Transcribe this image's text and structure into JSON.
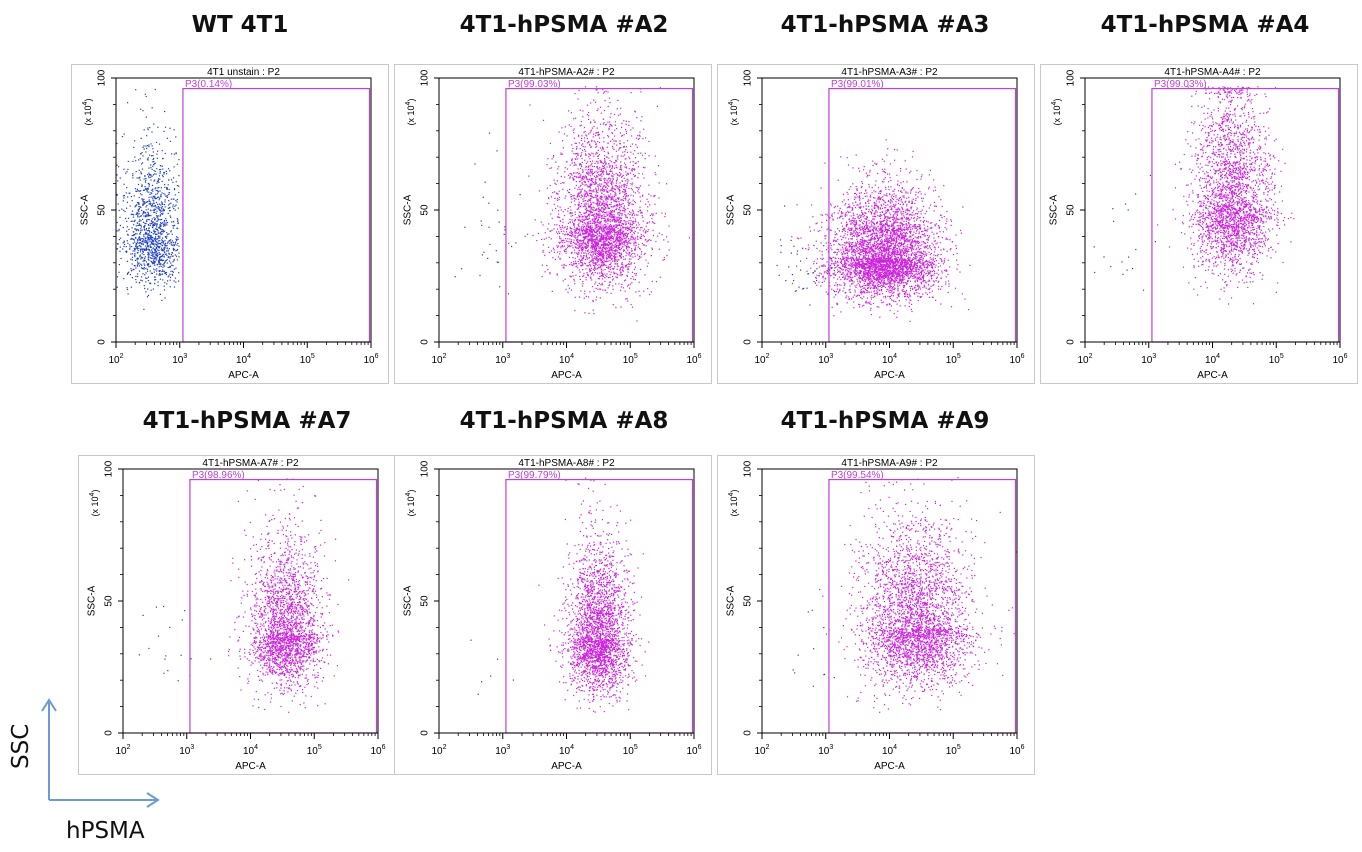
{
  "figure": {
    "corner_labels": {
      "y": "SSC",
      "x": "hPSMA"
    },
    "arrow_color": "#6a9bd6"
  },
  "colors": {
    "gated": "#cc22dd",
    "ungated": "#1f3fc8",
    "gate_line": "#c040d8",
    "frame": "#000000",
    "panel_border": "#c8c8c8"
  },
  "panels": [
    {
      "heading": "WT 4T1",
      "plot_title": "4T1 unstain : P2",
      "gate_label": "P3(0.14%)",
      "x_axis_label": "APC-A",
      "y_axis_label": "SSC-A"
    },
    {
      "heading": "4T1-hPSMA #A2",
      "plot_title": "4T1-hPSMA-A2# : P2",
      "gate_label": "P3(99.03%)",
      "x_axis_label": "APC-A",
      "y_axis_label": "SSC-A"
    },
    {
      "heading": "4T1-hPSMA #A3",
      "plot_title": "4T1-hPSMA-A3# : P2",
      "gate_label": "P3(99.01%)",
      "x_axis_label": "APC-A",
      "y_axis_label": "SSC-A"
    },
    {
      "heading": "4T1-hPSMA #A4",
      "plot_title": "4T1-hPSMA-A4# : P2",
      "gate_label": "P3(99.03%)",
      "x_axis_label": "APC-A",
      "y_axis_label": "SSC-A"
    },
    {
      "heading": "4T1-hPSMA #A7",
      "plot_title": "4T1-hPSMA-A7# : P2",
      "gate_label": "P3(98.96%)",
      "x_axis_label": "APC-A",
      "y_axis_label": "SSC-A"
    },
    {
      "heading": "4T1-hPSMA #A8",
      "plot_title": "4T1-hPSMA-A8# : P2",
      "gate_label": "P3(99.79%)",
      "x_axis_label": "APC-A",
      "y_axis_label": "SSC-A"
    },
    {
      "heading": "4T1-hPSMA #A9",
      "plot_title": "4T1-hPSMA-A9# : P2",
      "gate_label": "P3(99.54%)",
      "x_axis_label": "APC-A",
      "y_axis_label": "SSC-A"
    }
  ],
  "chart_data": [
    {
      "type": "scatter",
      "title": "4T1 unstain : P2",
      "xlabel": "APC-A",
      "ylabel": "SSC-A",
      "x_scale": "log",
      "y_unit": "(x 10^4)",
      "x_ticks": [
        "10^2",
        "10^3",
        "10^4",
        "10^5",
        "10^6"
      ],
      "y_ticks": [
        "0",
        "50",
        "100"
      ],
      "xlim": [
        2,
        6
      ],
      "ylim": [
        0,
        100
      ],
      "gate": {
        "name": "P3",
        "percent": 0.14,
        "x_range": [
          3.05,
          6
        ],
        "y_range": [
          0,
          96
        ]
      },
      "clusters": [
        {
          "x_center": 2.55,
          "x_spread": 0.22,
          "y_center": 40,
          "y_spread": 14,
          "count": 1300,
          "gated": false,
          "x_max": 2.98
        }
      ]
    },
    {
      "type": "scatter",
      "title": "4T1-hPSMA-A2# : P2",
      "xlabel": "APC-A",
      "ylabel": "SSC-A",
      "x_scale": "log",
      "y_unit": "(x 10^4)",
      "x_ticks": [
        "10^2",
        "10^3",
        "10^4",
        "10^5",
        "10^6"
      ],
      "y_ticks": [
        "0",
        "50",
        "100"
      ],
      "xlim": [
        2,
        6
      ],
      "ylim": [
        0,
        100
      ],
      "gate": {
        "name": "P3",
        "percent": 99.03,
        "x_range": [
          3.05,
          6
        ],
        "y_range": [
          0,
          96
        ]
      },
      "clusters": [
        {
          "x_center": 4.55,
          "x_spread": 0.35,
          "y_center": 44,
          "y_spread": 16,
          "count": 3200,
          "gated": true
        },
        {
          "x_center": 2.7,
          "x_spread": 0.3,
          "y_center": 38,
          "y_spread": 12,
          "count": 30,
          "gated": false
        }
      ]
    },
    {
      "type": "scatter",
      "title": "4T1-hPSMA-A3# : P2",
      "xlabel": "APC-A",
      "ylabel": "SSC-A",
      "x_scale": "log",
      "y_unit": "(x 10^4)",
      "x_ticks": [
        "10^2",
        "10^3",
        "10^4",
        "10^5",
        "10^6"
      ],
      "y_ticks": [
        "0",
        "50",
        "100"
      ],
      "xlim": [
        2,
        6
      ],
      "ylim": [
        0,
        100
      ],
      "gate": {
        "name": "P3",
        "percent": 99.01,
        "x_range": [
          3.05,
          6
        ],
        "y_range": [
          0,
          96
        ]
      },
      "clusters": [
        {
          "x_center": 3.9,
          "x_spread": 0.42,
          "y_center": 32,
          "y_spread": 11,
          "count": 4200,
          "gated": true
        },
        {
          "x_center": 2.75,
          "x_spread": 0.3,
          "y_center": 28,
          "y_spread": 9,
          "count": 45,
          "gated": false
        }
      ]
    },
    {
      "type": "scatter",
      "title": "4T1-hPSMA-A4# : P2",
      "xlabel": "APC-A",
      "ylabel": "SSC-A",
      "x_scale": "log",
      "y_unit": "(x 10^4)",
      "x_ticks": [
        "10^2",
        "10^3",
        "10^4",
        "10^5",
        "10^6"
      ],
      "y_ticks": [
        "0",
        "50",
        "100"
      ],
      "xlim": [
        2,
        6
      ],
      "ylim": [
        0,
        100
      ],
      "gate": {
        "name": "P3",
        "percent": 99.03,
        "x_range": [
          3.05,
          6
        ],
        "y_range": [
          0,
          96
        ]
      },
      "clusters": [
        {
          "x_center": 4.3,
          "x_spread": 0.3,
          "y_center": 52,
          "y_spread": 18,
          "count": 2600,
          "gated": true
        },
        {
          "x_center": 2.7,
          "x_spread": 0.3,
          "y_center": 30,
          "y_spread": 10,
          "count": 18,
          "gated": false
        }
      ]
    },
    {
      "type": "scatter",
      "title": "4T1-hPSMA-A7# : P2",
      "xlabel": "APC-A",
      "ylabel": "SSC-A",
      "x_scale": "log",
      "y_unit": "(x 10^4)",
      "x_ticks": [
        "10^2",
        "10^3",
        "10^4",
        "10^5",
        "10^6"
      ],
      "y_ticks": [
        "0",
        "50",
        "100"
      ],
      "xlim": [
        2,
        6
      ],
      "ylim": [
        0,
        100
      ],
      "gate": {
        "name": "P3",
        "percent": 98.96,
        "x_range": [
          3.05,
          6
        ],
        "y_range": [
          0,
          96
        ]
      },
      "clusters": [
        {
          "x_center": 4.55,
          "x_spread": 0.28,
          "y_center": 38,
          "y_spread": 15,
          "count": 2400,
          "gated": true
        },
        {
          "x_center": 2.7,
          "x_spread": 0.3,
          "y_center": 30,
          "y_spread": 10,
          "count": 18,
          "gated": false
        }
      ]
    },
    {
      "type": "scatter",
      "title": "4T1-hPSMA-A8# : P2",
      "xlabel": "APC-A",
      "ylabel": "SSC-A",
      "x_scale": "log",
      "y_unit": "(x 10^4)",
      "x_ticks": [
        "10^2",
        "10^3",
        "10^4",
        "10^5",
        "10^6"
      ],
      "y_ticks": [
        "0",
        "50",
        "100"
      ],
      "xlim": [
        2,
        6
      ],
      "ylim": [
        0,
        100
      ],
      "gate": {
        "name": "P3",
        "percent": 99.79,
        "x_range": [
          3.05,
          6
        ],
        "y_range": [
          0,
          96
        ]
      },
      "clusters": [
        {
          "x_center": 4.5,
          "x_spread": 0.24,
          "y_center": 36,
          "y_spread": 15,
          "count": 2600,
          "gated": true
        },
        {
          "x_center": 2.9,
          "x_spread": 0.2,
          "y_center": 20,
          "y_spread": 8,
          "count": 6,
          "gated": false
        }
      ]
    },
    {
      "type": "scatter",
      "title": "4T1-hPSMA-A9# : P2",
      "xlabel": "APC-A",
      "ylabel": "SSC-A",
      "x_scale": "log",
      "y_unit": "(x 10^4)",
      "x_ticks": [
        "10^2",
        "10^3",
        "10^4",
        "10^5",
        "10^6"
      ],
      "y_ticks": [
        "0",
        "50",
        "100"
      ],
      "xlim": [
        2,
        6
      ],
      "ylim": [
        0,
        100
      ],
      "gate": {
        "name": "P3",
        "percent": 99.54,
        "x_range": [
          3.05,
          6
        ],
        "y_range": [
          0,
          96
        ]
      },
      "clusters": [
        {
          "x_center": 4.4,
          "x_spread": 0.42,
          "y_center": 40,
          "y_spread": 16,
          "count": 3200,
          "gated": true
        },
        {
          "x_center": 2.8,
          "x_spread": 0.25,
          "y_center": 28,
          "y_spread": 10,
          "count": 12,
          "gated": false
        }
      ]
    }
  ]
}
